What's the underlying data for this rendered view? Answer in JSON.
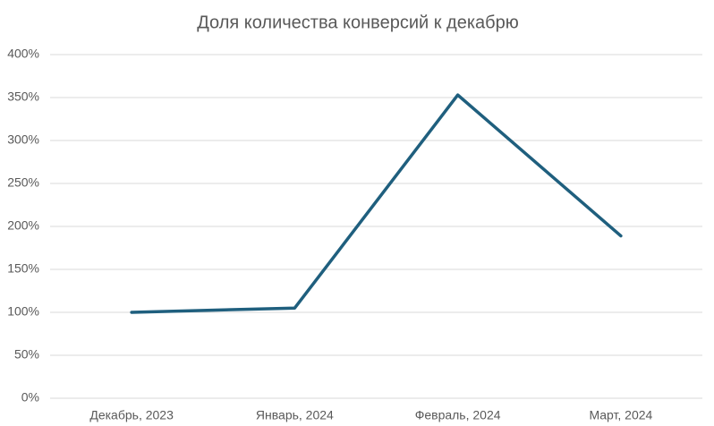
{
  "chart_data": {
    "type": "line",
    "title": "Доля количества конверсий к декабрю",
    "categories": [
      "Декабрь, 2023",
      "Январь, 2024",
      "Февраль, 2024",
      "Март, 2024"
    ],
    "values": [
      100,
      105,
      353,
      189
    ],
    "color": "#1f5f7e",
    "ylim": [
      0,
      400
    ],
    "yticks": [
      {
        "value": 0,
        "label": "0%"
      },
      {
        "value": 50,
        "label": "50%"
      },
      {
        "value": 100,
        "label": "100%"
      },
      {
        "value": 150,
        "label": "150%"
      },
      {
        "value": 200,
        "label": "200%"
      },
      {
        "value": 250,
        "label": "250%"
      },
      {
        "value": 300,
        "label": "300%"
      },
      {
        "value": 350,
        "label": "350%"
      },
      {
        "value": 400,
        "label": "400%"
      }
    ],
    "grid": true
  }
}
